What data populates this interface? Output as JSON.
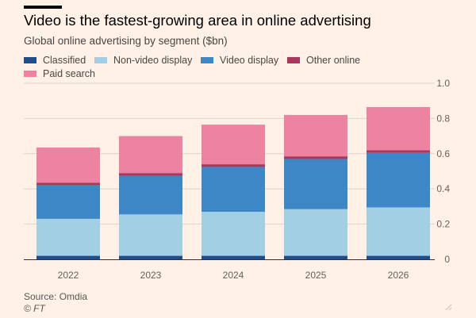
{
  "title": "Video is the fastest-growing area in online advertising",
  "subtitle": "Global online advertising by segment ($bn)",
  "source": "Source: Omdia",
  "copyright": "© FT",
  "colors": {
    "background": "#FFF1E5",
    "Classified": "#1F4E8C",
    "Non-video display": "#A3CFE5",
    "Video display": "#3E87C6",
    "Other online": "#A8385E",
    "Paid search": "#EE82A1",
    "grid": "#DCD4CC"
  },
  "chart_data": {
    "type": "bar",
    "stacked": true,
    "categories": [
      "2022",
      "2023",
      "2024",
      "2025",
      "2026"
    ],
    "series": [
      {
        "name": "Classified",
        "values": [
          0.02,
          0.02,
          0.02,
          0.02,
          0.02
        ]
      },
      {
        "name": "Non-video display",
        "values": [
          0.21,
          0.235,
          0.25,
          0.265,
          0.275
        ]
      },
      {
        "name": "Video display",
        "values": [
          0.19,
          0.22,
          0.255,
          0.285,
          0.31
        ]
      },
      {
        "name": "Other online",
        "values": [
          0.015,
          0.015,
          0.015,
          0.015,
          0.015
        ]
      },
      {
        "name": "Paid search",
        "values": [
          0.2,
          0.21,
          0.225,
          0.235,
          0.245
        ]
      }
    ],
    "yticks": [
      "0",
      "0.2",
      "0.4",
      "0.6",
      "0.8",
      "1.0"
    ],
    "ylim": [
      0,
      1.0
    ],
    "yaxis_position": "right",
    "grid": true,
    "legend_position": "top-left"
  }
}
